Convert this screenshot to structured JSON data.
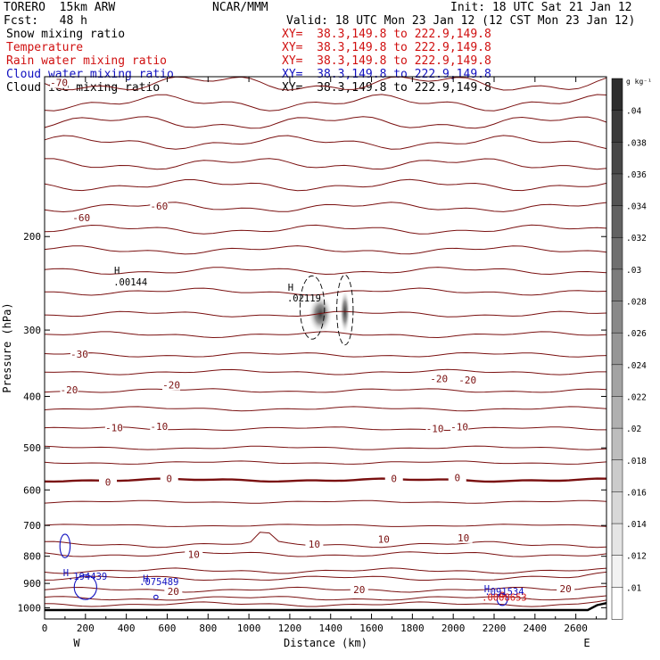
{
  "header": {
    "model": "TORERO  15km ARW",
    "org": "NCAR/MMM",
    "init": "Init: 18 UTC Sat 21 Jan 12",
    "fcst": "Fcst:   48 h",
    "valid": "Valid: 18 UTC Mon 23 Jan 12 (12 CST Mon 23 Jan 12)",
    "fields": [
      {
        "label": "Snow mixing ratio",
        "xy": "XY=  38.3,149.8 to 222.9,149.8",
        "color": "#000000"
      },
      {
        "label": "Temperature",
        "xy": "XY=  38.3,149.8 to 222.9,149.8",
        "color": "#d01010"
      },
      {
        "label": "Rain water mixing ratio",
        "xy": "XY=  38.3,149.8 to 222.9,149.8",
        "color": "#d01010"
      },
      {
        "label": "Cloud water mixing ratio",
        "xy": "XY=  38.3,149.8 to 222.9,149.8",
        "color": "#1010c0"
      },
      {
        "label": "Cloud ice mixing ratio",
        "xy": "XY=  38.3,149.8 to 222.9,149.8",
        "color": "#000000"
      }
    ]
  },
  "chart_data": {
    "type": "contour",
    "xlabel": "Distance (km)",
    "ylabel": "Pressure (hPa)",
    "xlim": [
      0,
      2750
    ],
    "ylim": [
      1050,
      100
    ],
    "xticks": [
      0,
      200,
      400,
      600,
      800,
      1000,
      1200,
      1400,
      1600,
      1800,
      2000,
      2200,
      2400,
      2600
    ],
    "yticks": [
      200,
      300,
      400,
      500,
      600,
      700,
      800,
      900,
      1000
    ],
    "yscale": "log",
    "x_end_labels": {
      "left": "W",
      "right": "E"
    },
    "colorbar": {
      "unit": "g kg⁻¹",
      "ticks": [
        ".01",
        ".012",
        ".014",
        ".016",
        ".018",
        ".02",
        ".022",
        ".024",
        ".026",
        ".028",
        ".03",
        ".032",
        ".034",
        ".036",
        ".038",
        ".04"
      ]
    },
    "isotherm_labels": [
      {
        "text": "-70",
        "x": 70,
        "p": 103
      },
      {
        "text": "-60",
        "x": 180,
        "p": 185
      },
      {
        "text": "-60",
        "x": 560,
        "p": 176
      },
      {
        "text": "-30",
        "x": 170,
        "p": 334
      },
      {
        "text": "-20",
        "x": 120,
        "p": 390
      },
      {
        "text": "-20",
        "x": 620,
        "p": 382
      },
      {
        "text": "-20",
        "x": 1930,
        "p": 372
      },
      {
        "text": "-20",
        "x": 2070,
        "p": 374
      },
      {
        "text": "-10",
        "x": 340,
        "p": 460
      },
      {
        "text": "-10",
        "x": 560,
        "p": 457
      },
      {
        "text": "-10",
        "x": 1910,
        "p": 462
      },
      {
        "text": "-10",
        "x": 2030,
        "p": 458
      },
      {
        "text": "0",
        "x": 310,
        "p": 582
      },
      {
        "text": "0",
        "x": 610,
        "p": 573
      },
      {
        "text": "0",
        "x": 1710,
        "p": 573
      },
      {
        "text": "0",
        "x": 2020,
        "p": 571
      },
      {
        "text": "10",
        "x": 730,
        "p": 796
      },
      {
        "text": "10",
        "x": 1320,
        "p": 761
      },
      {
        "text": "10",
        "x": 1660,
        "p": 746
      },
      {
        "text": "10",
        "x": 2050,
        "p": 741
      },
      {
        "text": "20",
        "x": 630,
        "p": 935
      },
      {
        "text": "20",
        "x": 1540,
        "p": 928
      },
      {
        "text": "20",
        "x": 2550,
        "p": 925
      }
    ],
    "maxima": [
      {
        "text": ".00144",
        "x": 420,
        "p": 247,
        "color": "#000000"
      },
      {
        "text": ".02119",
        "x": 1270,
        "p": 265,
        "color": "#000000"
      },
      {
        "text": ".194439",
        "x": 210,
        "p": 886,
        "color": "#1010c0"
      },
      {
        "text": ".075489",
        "x": 560,
        "p": 906,
        "color": "#1010c0"
      },
      {
        "text": ".091534",
        "x": 2250,
        "p": 945,
        "color": "#1010c0"
      },
      {
        "text": ".0008653",
        "x": 2250,
        "p": 970,
        "color": "#d01010"
      }
    ],
    "snow_shading": [
      {
        "x": 1350,
        "p": 280,
        "rx": 60,
        "rp": 25,
        "peak": 0.02119
      },
      {
        "x": 1470,
        "p": 277,
        "rx": 25,
        "rp": 28,
        "peak": 0.018
      }
    ],
    "ice_contours": [
      {
        "x": 1310,
        "p": 272,
        "rx": 60,
        "rp": 40
      },
      {
        "x": 1470,
        "p": 275,
        "rx": 40,
        "rp": 45
      }
    ],
    "cloud_water_contours": [
      {
        "x": 100,
        "p": 765,
        "rx": 25,
        "rp": 40
      },
      {
        "x": 200,
        "p": 915,
        "rx": 55,
        "rp": 50
      },
      {
        "x": 545,
        "p": 955,
        "rx": 10,
        "rp": 8
      },
      {
        "x": 2240,
        "p": 965,
        "rx": 25,
        "rp": 25
      }
    ],
    "rain_contours": [
      {
        "x": 2240,
        "p": 945,
        "rx": 12,
        "rp": 10
      }
    ],
    "terrain_p": 1010
  }
}
